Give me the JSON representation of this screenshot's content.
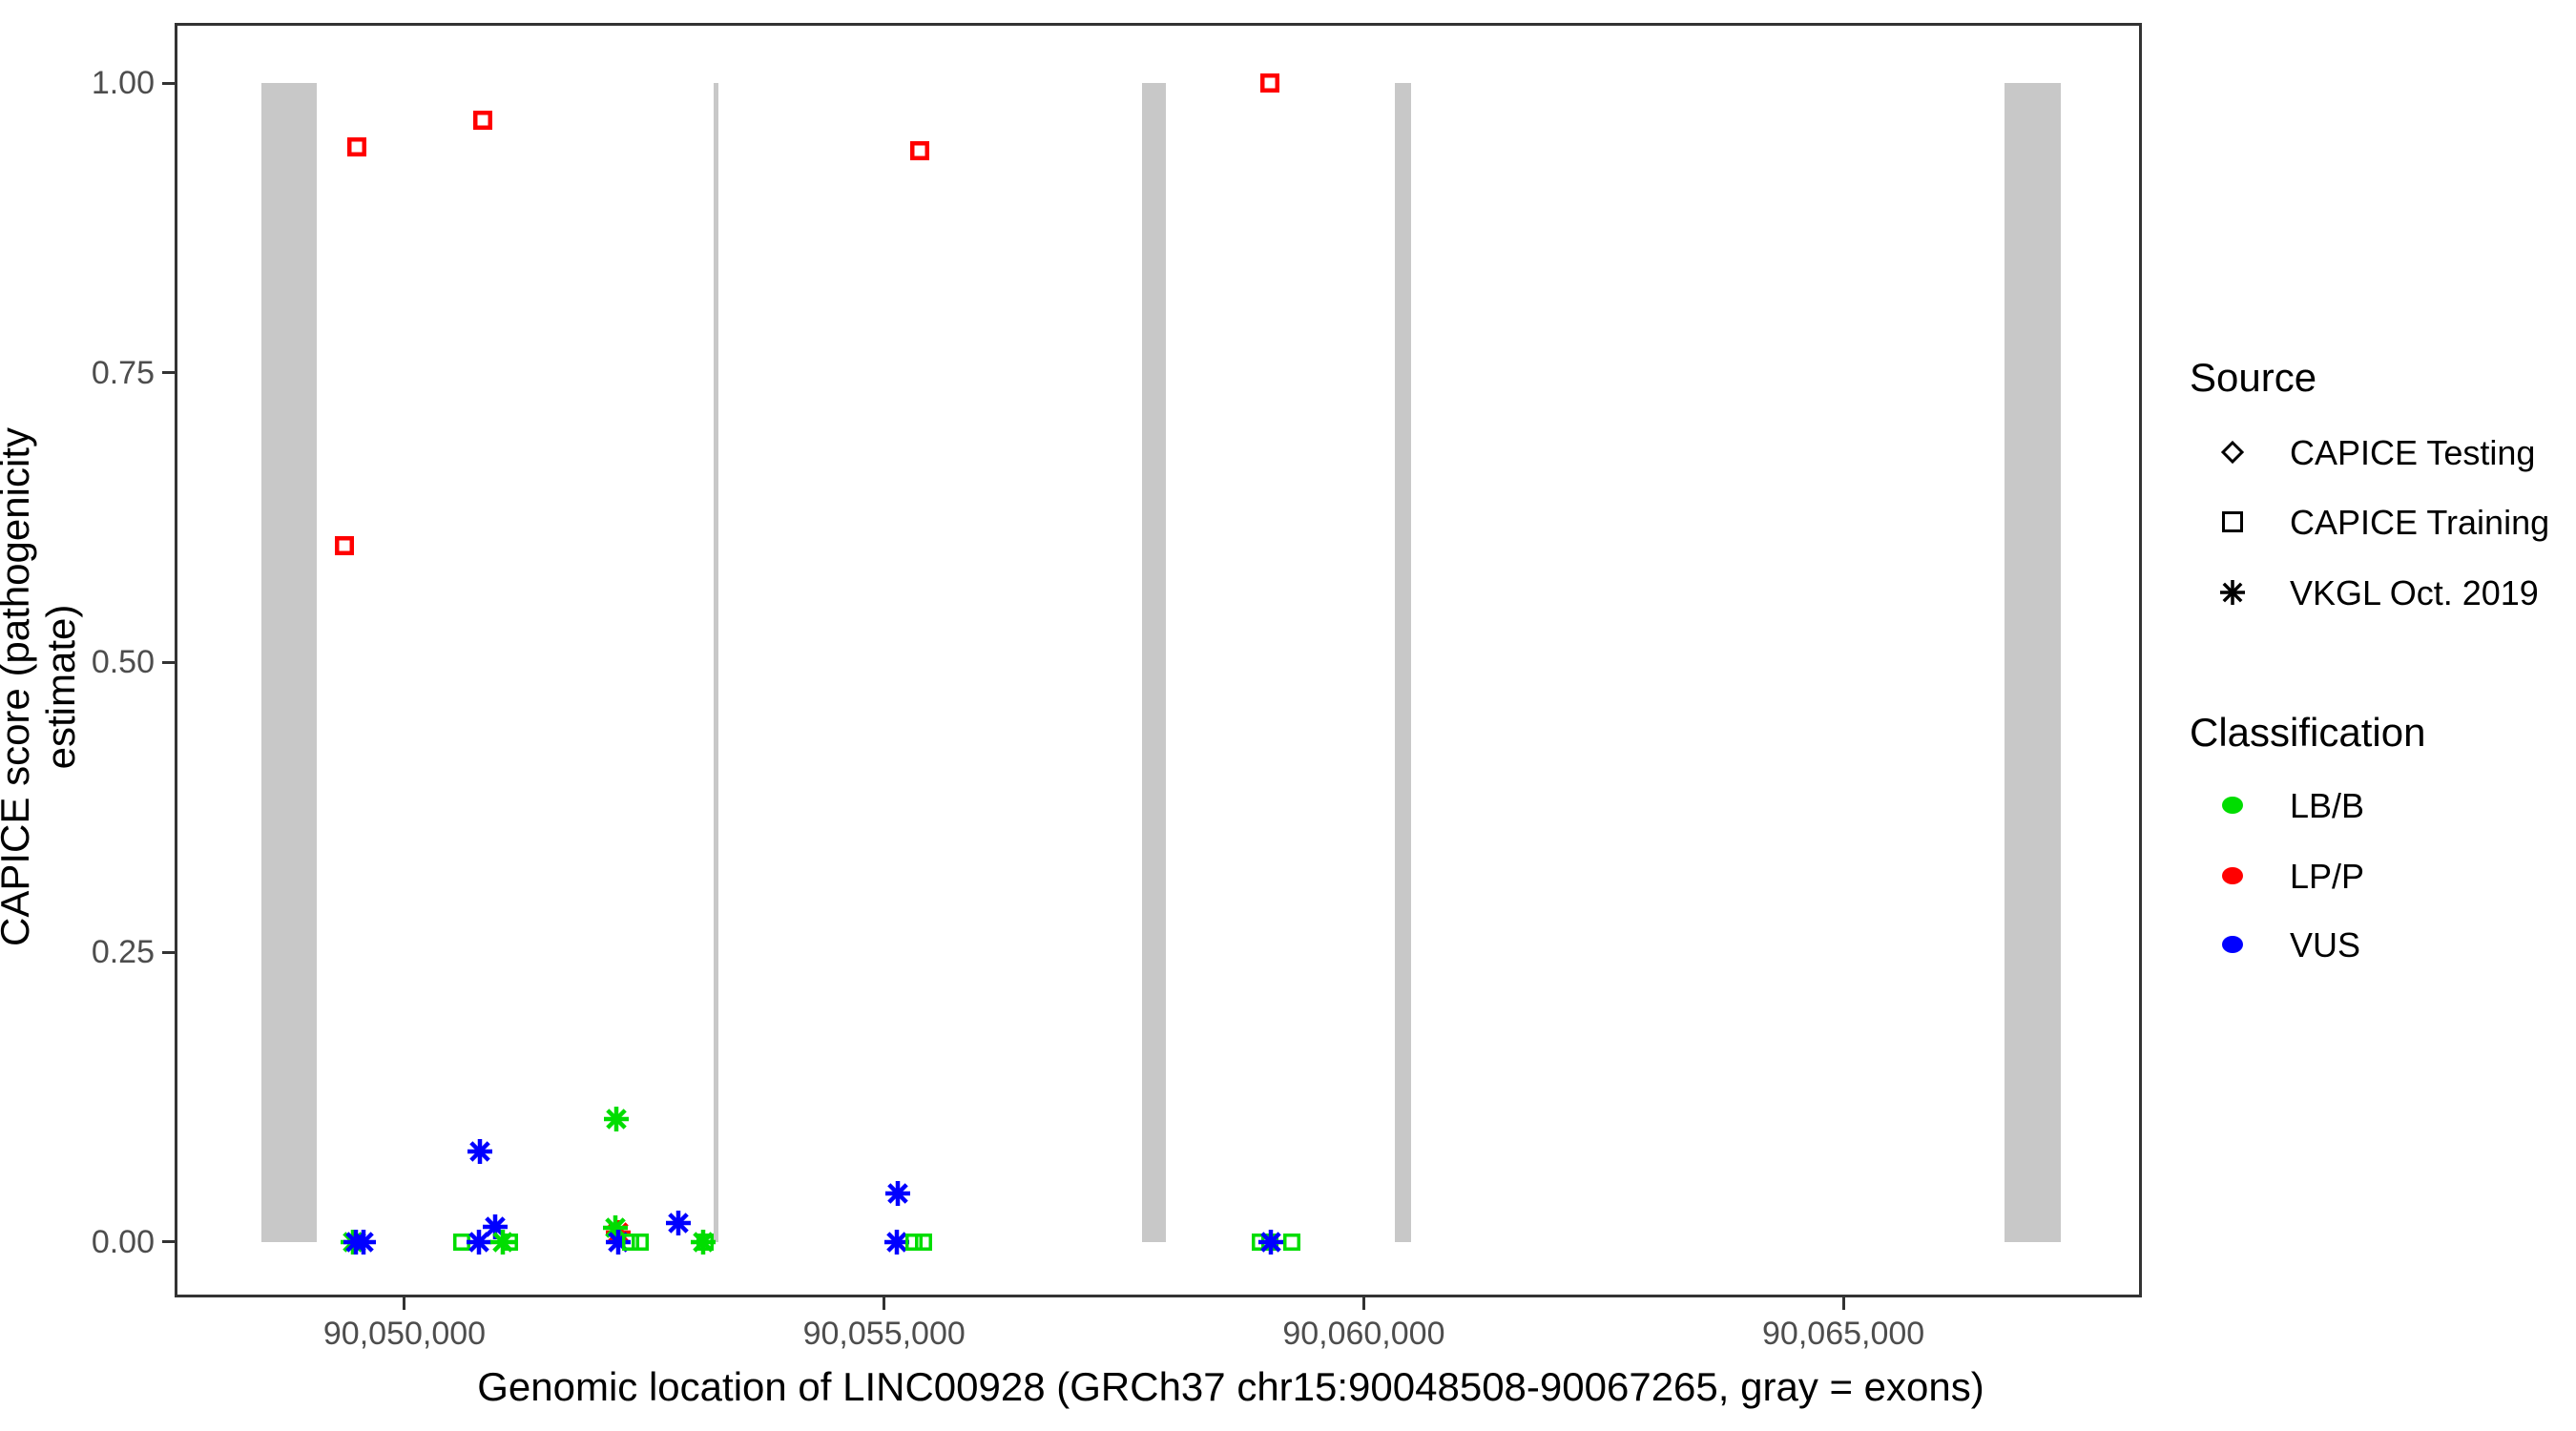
{
  "chart_data": {
    "type": "scatter",
    "title": "",
    "xlabel": "Genomic location of LINC00928 (GRCh37 chr15:90048508-90067265, gray = exons)",
    "ylabel": "CAPICE score (pathogenicity estimate)",
    "x_domain": [
      90047603,
      90068112
    ],
    "y_domain": [
      -0.048,
      1.052
    ],
    "grid": "off",
    "legend_position": "right",
    "x_ticks": [
      {
        "value": 90050000,
        "label": "90,050,000"
      },
      {
        "value": 90055000,
        "label": "90,055,000"
      },
      {
        "value": 90060000,
        "label": "90,060,000"
      },
      {
        "value": 90065000,
        "label": "90,065,000"
      }
    ],
    "y_ticks": [
      {
        "value": 0.0,
        "label": "0.00"
      },
      {
        "value": 0.25,
        "label": "0.25"
      },
      {
        "value": 0.5,
        "label": "0.50"
      },
      {
        "value": 0.75,
        "label": "0.75"
      },
      {
        "value": 1.0,
        "label": "1.00"
      }
    ],
    "exon_color": "#C8C8C8",
    "exons": [
      [
        90048508,
        90049085
      ],
      [
        90053222,
        90053272
      ],
      [
        90057689,
        90057938
      ],
      [
        90060324,
        90060493
      ],
      [
        90066681,
        90067265
      ]
    ],
    "class_colors": {
      "LB/B": "#00DD00",
      "LP/P": "#FF0000",
      "VUS": "#0000FF"
    },
    "shape_by_source": {
      "CAPICE Testing": "diamond-open",
      "CAPICE Training": "square-open",
      "VKGL Oct. 2019": "asterisk"
    },
    "points": [
      {
        "x": 90049373,
        "y": 0.601,
        "source": "CAPICE Training",
        "class": "LP/P"
      },
      {
        "x": 90049503,
        "y": 0.945,
        "source": "CAPICE Training",
        "class": "LP/P"
      },
      {
        "x": 90050816,
        "y": 0.968,
        "source": "CAPICE Training",
        "class": "LP/P"
      },
      {
        "x": 90055371,
        "y": 0.942,
        "source": "CAPICE Training",
        "class": "LP/P"
      },
      {
        "x": 90059021,
        "y": 1.0,
        "source": "CAPICE Training",
        "class": "LP/P"
      },
      {
        "x": 90049463,
        "y": 0.0,
        "source": "VKGL Oct. 2019",
        "class": "LB/B"
      },
      {
        "x": 90049493,
        "y": 0.0,
        "source": "VKGL Oct. 2019",
        "class": "VUS"
      },
      {
        "x": 90049572,
        "y": 0.0,
        "source": "VKGL Oct. 2019",
        "class": "VUS"
      },
      {
        "x": 90050597,
        "y": 0.0,
        "source": "CAPICE Training",
        "class": "LB/B"
      },
      {
        "x": 90050776,
        "y": 0.0,
        "source": "VKGL Oct. 2019",
        "class": "VUS"
      },
      {
        "x": 90050786,
        "y": 0.078,
        "source": "VKGL Oct. 2019",
        "class": "VUS"
      },
      {
        "x": 90050945,
        "y": 0.013,
        "source": "VKGL Oct. 2019",
        "class": "VUS"
      },
      {
        "x": 90051024,
        "y": 0.0,
        "source": "VKGL Oct. 2019",
        "class": "LB/B"
      },
      {
        "x": 90051094,
        "y": 0.0,
        "source": "CAPICE Training",
        "class": "LB/B"
      },
      {
        "x": 90052228,
        "y": 0.008,
        "source": "VKGL Oct. 2019",
        "class": "LP/P"
      },
      {
        "x": 90052198,
        "y": 0.012,
        "source": "VKGL Oct. 2019",
        "class": "LB/B"
      },
      {
        "x": 90052208,
        "y": 0.106,
        "source": "VKGL Oct. 2019",
        "class": "LB/B"
      },
      {
        "x": 90052228,
        "y": 0.0,
        "source": "VKGL Oct. 2019",
        "class": "VUS"
      },
      {
        "x": 90052357,
        "y": 0.0,
        "source": "CAPICE Training",
        "class": "LB/B"
      },
      {
        "x": 90052457,
        "y": 0.0,
        "source": "CAPICE Training",
        "class": "LB/B"
      },
      {
        "x": 90052855,
        "y": 0.016,
        "source": "VKGL Oct. 2019",
        "class": "VUS"
      },
      {
        "x": 90053113,
        "y": 0.0,
        "source": "VKGL Oct. 2019",
        "class": "LB/B"
      },
      {
        "x": 90053133,
        "y": 0.0,
        "source": "CAPICE Training",
        "class": "LB/B"
      },
      {
        "x": 90055132,
        "y": 0.0,
        "source": "VKGL Oct. 2019",
        "class": "VUS"
      },
      {
        "x": 90055142,
        "y": 0.042,
        "source": "VKGL Oct. 2019",
        "class": "VUS"
      },
      {
        "x": 90055311,
        "y": 0.0,
        "source": "CAPICE Training",
        "class": "LB/B"
      },
      {
        "x": 90055411,
        "y": 0.0,
        "source": "CAPICE Training",
        "class": "LB/B"
      },
      {
        "x": 90058922,
        "y": 0.0,
        "source": "CAPICE Training",
        "class": "LB/B"
      },
      {
        "x": 90059021,
        "y": 0.0,
        "source": "CAPICE Training",
        "class": "LB/B"
      },
      {
        "x": 90059031,
        "y": 0.0,
        "source": "VKGL Oct. 2019",
        "class": "VUS"
      },
      {
        "x": 90059250,
        "y": 0.0,
        "source": "CAPICE Training",
        "class": "LB/B"
      }
    ],
    "legend": {
      "source_title": "Source",
      "source_items": [
        {
          "shape": "diamond-open",
          "label": "CAPICE Testing"
        },
        {
          "shape": "square-open",
          "label": "CAPICE Training"
        },
        {
          "shape": "asterisk",
          "label": "VKGL Oct. 2019"
        }
      ],
      "classification_title": "Classification",
      "classification_items": [
        {
          "class": "LB/B",
          "label": "LB/B"
        },
        {
          "class": "LP/P",
          "label": "LP/P"
        },
        {
          "class": "VUS",
          "label": "VUS"
        }
      ]
    }
  }
}
